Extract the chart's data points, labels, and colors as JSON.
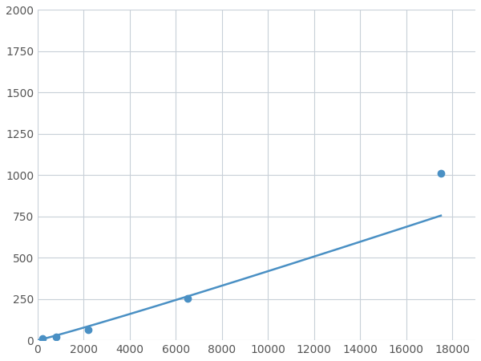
{
  "x": [
    200,
    800,
    2200,
    6500,
    17500
  ],
  "y": [
    10,
    20,
    65,
    255,
    1010
  ],
  "line_color": "#4a90c4",
  "marker_color": "#4a90c4",
  "marker_size": 6,
  "marker_style": "o",
  "line_width": 1.8,
  "xlim": [
    0,
    19000
  ],
  "ylim": [
    0,
    2000
  ],
  "xticks": [
    0,
    2000,
    4000,
    6000,
    8000,
    10000,
    12000,
    14000,
    16000,
    18000
  ],
  "yticks": [
    0,
    250,
    500,
    750,
    1000,
    1250,
    1500,
    1750,
    2000
  ],
  "grid_color": "#c8d0d8",
  "background_color": "#ffffff",
  "fig_background": "#ffffff",
  "tick_labelsize": 10,
  "tick_color": "#555555"
}
